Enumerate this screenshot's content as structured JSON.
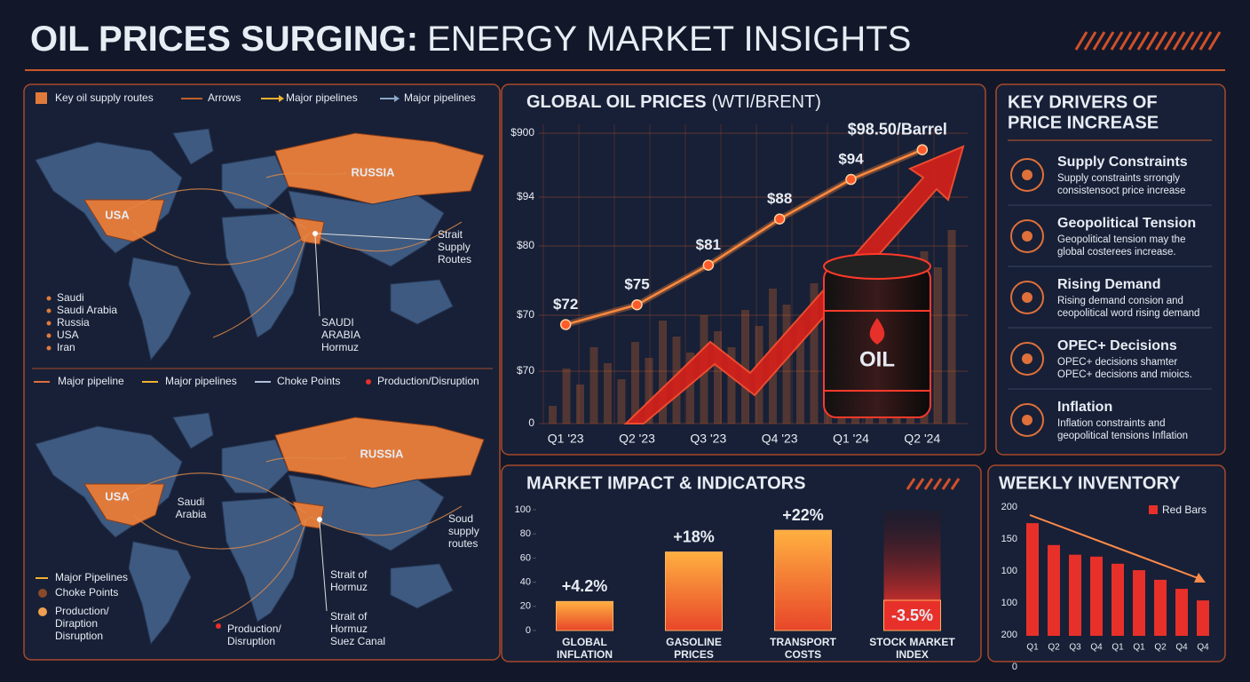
{
  "header": {
    "title_bold": "OIL PRICES SURGING:",
    "title_light": "ENERGY MARKET INSIGHTS"
  },
  "maps": {
    "top": {
      "legend": [
        "Key oil supply routes",
        "Arrows",
        "Major pipelines",
        "Major pipelines"
      ],
      "russia": "RUSSIA",
      "usa": "USA",
      "strait": [
        "Strait",
        "Supply",
        "Routes"
      ],
      "saudi": [
        "SAUDI",
        "ARABIA",
        "Hormuz"
      ],
      "countries": [
        "Saudi",
        "Saudi Arabia",
        "Russia",
        "USA",
        "Iran"
      ]
    },
    "legend": [
      "Major pipeline",
      "Major pipelines",
      "Choke Points",
      "Production/Disruption"
    ],
    "bottom": {
      "russia": "RUSSIA",
      "usa": "USA",
      "saudi": [
        "Saudi",
        "Arabia"
      ],
      "routes": [
        "Soud",
        "supply",
        "routes"
      ],
      "strait": [
        "Strait of",
        "Hormuz"
      ],
      "suez": [
        "Strait of",
        "Hormuz",
        "Suez Canal"
      ],
      "disruption": [
        "Production/",
        "Disruption"
      ],
      "legend": [
        "Major Pipelines",
        "Choke Points"
      ],
      "production": [
        "Production/",
        "Diraption",
        "Disruption"
      ]
    }
  },
  "chart_data": [
    {
      "type": "line",
      "title": "GLOBAL OIL PRICES",
      "subtitle": "(WTI/BRENT)",
      "categories": [
        "Q1 '23",
        "Q2 '23",
        "Q3 '23",
        "Q4 '23",
        "Q1 '24",
        "Q2 '24"
      ],
      "values": [
        72,
        75,
        81,
        88,
        94,
        98.5
      ],
      "value_labels": [
        "$72",
        "$75",
        "$81",
        "$88",
        "$94",
        "$98.50/Barrel"
      ],
      "color": "#ff8a3d",
      "ylim": [
        57,
        101
      ],
      "yaxis_labels": [
        "$900",
        "$94",
        "$80",
        "$70",
        "$70",
        "0"
      ],
      "grid": true,
      "barrel_label": "OIL"
    },
    {
      "type": "bar",
      "title": "MARKET IMPACT & INDICATORS",
      "categories": [
        [
          "GLOBAL",
          "INFLATION"
        ],
        [
          "GASOLINE",
          "PRICES"
        ],
        [
          "TRANSPORT",
          "COSTS"
        ],
        [
          "STOCK MARKET",
          "INDEX"
        ]
      ],
      "values": [
        24,
        65,
        83,
        25
      ],
      "bar_labels": [
        "+4.2%",
        "+18%",
        "+22%",
        "-3.5%"
      ],
      "ylim": [
        0,
        100
      ],
      "yticks": [
        0,
        20,
        40,
        60,
        80,
        100
      ]
    },
    {
      "type": "bar",
      "title": "WEEKLY INVENTORY",
      "categories": [
        "Q1",
        "Q2",
        "Q3",
        "Q4",
        "Q1",
        "Q1",
        "Q2",
        "Q4",
        "Q4"
      ],
      "series": [
        {
          "name": "Red Bars",
          "color": "#e8302a",
          "values": [
            175,
            141,
            126,
            123,
            112,
            102,
            87,
            73,
            55
          ]
        }
      ],
      "ylim": [
        0,
        200
      ],
      "yaxis_labels": [
        "200",
        "150",
        "100",
        "100",
        "200",
        "0"
      ],
      "legend": "upper right"
    }
  ],
  "drivers": {
    "title": [
      "KEY DRIVERS OF",
      "PRICE INCREASE"
    ],
    "items": [
      {
        "title": "Supply Constraints",
        "text": [
          "Supply constraints srrongly",
          "consistensoct price increase"
        ]
      },
      {
        "title": "Geopolitical Tension",
        "text": [
          "Geopolitical tension may the",
          "global costerees increase."
        ]
      },
      {
        "title": "Rising Demand",
        "text": [
          "Rising demand consion and",
          "ceopolitical word rising demand"
        ]
      },
      {
        "title": "OPEC+ Decisions",
        "text": [
          "OPEC+ decisions shamter",
          "OPEC+ decisions and mioics."
        ]
      },
      {
        "title": "Inflation",
        "text": [
          "Inflation constraints and",
          "geopolitical tensions Inflation"
        ]
      }
    ]
  }
}
